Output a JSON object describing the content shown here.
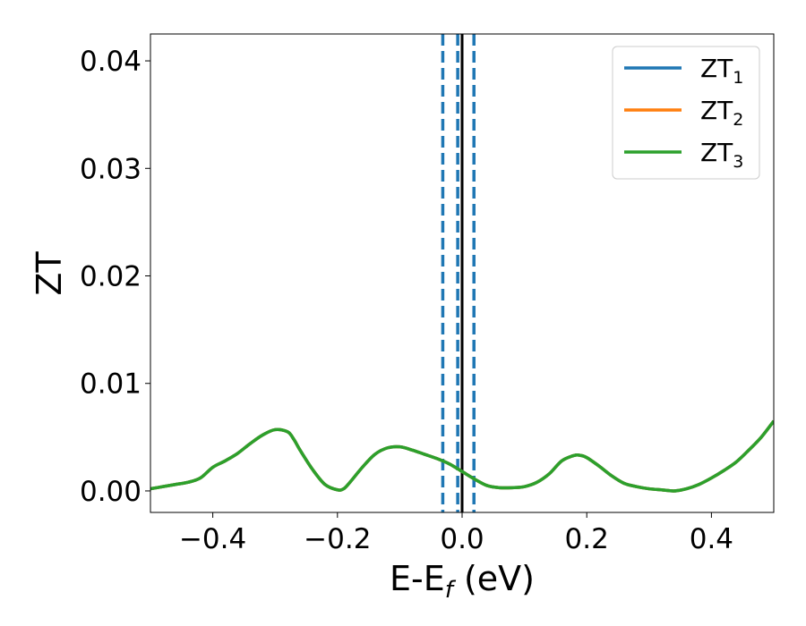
{
  "chart_data": {
    "type": "line",
    "xlabel": {
      "main": "E-E",
      "sub": "f",
      "unit": " (eV)"
    },
    "ylabel": "ZT",
    "xlim": [
      -0.5,
      0.5
    ],
    "ylim": [
      -0.002,
      0.0425
    ],
    "xticks": [
      -0.4,
      -0.2,
      0.0,
      0.2,
      0.4
    ],
    "xtick_labels": [
      "−0.4",
      "−0.2",
      "0.0",
      "0.2",
      "0.4"
    ],
    "yticks": [
      0.0,
      0.01,
      0.02,
      0.03,
      0.04
    ],
    "ytick_labels": [
      "0.00",
      "0.01",
      "0.02",
      "0.03",
      "0.04"
    ],
    "grid": false,
    "legend_position": "top-right",
    "x": [
      -0.5,
      -0.48,
      -0.46,
      -0.44,
      -0.42,
      -0.4,
      -0.38,
      -0.36,
      -0.34,
      -0.32,
      -0.3,
      -0.28,
      -0.27,
      -0.26,
      -0.24,
      -0.22,
      -0.2,
      -0.19,
      -0.18,
      -0.16,
      -0.14,
      -0.12,
      -0.1,
      -0.08,
      -0.06,
      -0.04,
      -0.02,
      0.0,
      0.02,
      0.04,
      0.06,
      0.08,
      0.1,
      0.12,
      0.14,
      0.16,
      0.18,
      0.19,
      0.2,
      0.22,
      0.24,
      0.26,
      0.28,
      0.3,
      0.32,
      0.34,
      0.36,
      0.38,
      0.4,
      0.42,
      0.44,
      0.46,
      0.48,
      0.5
    ],
    "series": [
      {
        "name": "ZT1",
        "label": {
          "main": "ZT",
          "sub": "1"
        },
        "color": "#1f77b4",
        "values": [
          0.0002,
          0.0004,
          0.0006,
          0.0008,
          0.0012,
          0.0022,
          0.0028,
          0.0035,
          0.0044,
          0.0052,
          0.0057,
          0.0055,
          0.0048,
          0.0038,
          0.002,
          0.0006,
          0.0001,
          0.0002,
          0.0008,
          0.0022,
          0.0034,
          0.004,
          0.0041,
          0.0038,
          0.0034,
          0.003,
          0.0025,
          0.0018,
          0.0011,
          0.0005,
          0.0003,
          0.0003,
          0.0004,
          0.0008,
          0.0016,
          0.0028,
          0.0033,
          0.0033,
          0.0031,
          0.0023,
          0.0014,
          0.0007,
          0.0004,
          0.0002,
          0.0001,
          0.0,
          0.0002,
          0.0006,
          0.0012,
          0.0019,
          0.0027,
          0.0038,
          0.005,
          0.0065
        ]
      },
      {
        "name": "ZT2",
        "label": {
          "main": "ZT",
          "sub": "2"
        },
        "color": "#ff7f0e",
        "values": [
          0.0002,
          0.0004,
          0.0006,
          0.0008,
          0.0012,
          0.0022,
          0.0028,
          0.0035,
          0.0044,
          0.0052,
          0.0057,
          0.0055,
          0.0048,
          0.0038,
          0.002,
          0.0006,
          0.0001,
          0.0002,
          0.0008,
          0.0022,
          0.0034,
          0.004,
          0.0041,
          0.0038,
          0.0034,
          0.003,
          0.0025,
          0.0018,
          0.0011,
          0.0005,
          0.0003,
          0.0003,
          0.0004,
          0.0008,
          0.0016,
          0.0028,
          0.0033,
          0.0033,
          0.0031,
          0.0023,
          0.0014,
          0.0007,
          0.0004,
          0.0002,
          0.0001,
          0.0,
          0.0002,
          0.0006,
          0.0012,
          0.0019,
          0.0027,
          0.0038,
          0.005,
          0.0065
        ]
      },
      {
        "name": "ZT3",
        "label": {
          "main": "ZT",
          "sub": "3"
        },
        "color": "#2ca02c",
        "values": [
          0.0002,
          0.0004,
          0.0006,
          0.0008,
          0.0012,
          0.0022,
          0.0028,
          0.0035,
          0.0044,
          0.0052,
          0.0057,
          0.0055,
          0.0048,
          0.0038,
          0.002,
          0.0006,
          0.0001,
          0.0002,
          0.0008,
          0.0022,
          0.0034,
          0.004,
          0.0041,
          0.0038,
          0.0034,
          0.003,
          0.0025,
          0.0018,
          0.0011,
          0.0005,
          0.0003,
          0.0003,
          0.0004,
          0.0008,
          0.0016,
          0.0028,
          0.0033,
          0.0033,
          0.0031,
          0.0023,
          0.0014,
          0.0007,
          0.0004,
          0.0002,
          0.0001,
          0.0,
          0.0002,
          0.0006,
          0.0012,
          0.0019,
          0.0027,
          0.0038,
          0.005,
          0.0065
        ]
      }
    ],
    "vlines": [
      {
        "x": 0.0,
        "style": "solid",
        "color": "#000000"
      },
      {
        "x": -0.031,
        "style": "dashed",
        "color": "#1f77b4"
      },
      {
        "x": -0.007,
        "style": "dashed",
        "color": "#1f77b4"
      },
      {
        "x": 0.019,
        "style": "dashed",
        "color": "#1f77b4"
      }
    ]
  }
}
